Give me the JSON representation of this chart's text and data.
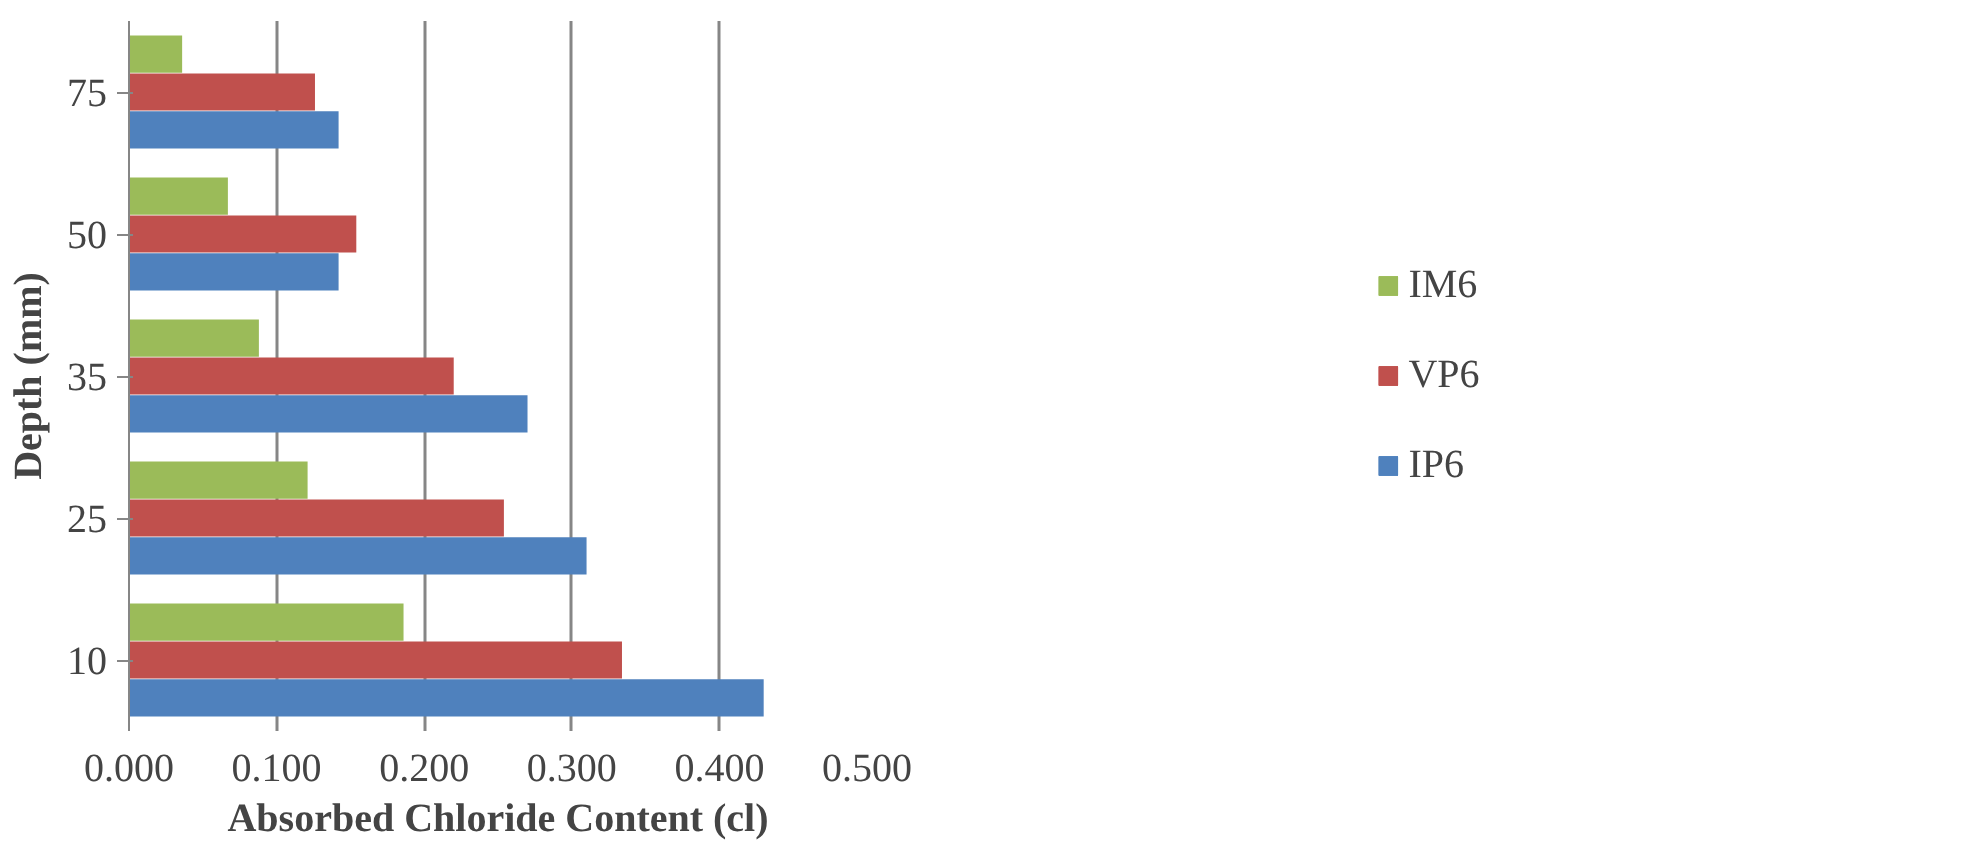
{
  "chart_data": {
    "type": "bar",
    "orientation": "horizontal",
    "xlabel": "Absorbed Chloride Content (cl)",
    "ylabel": "Depth (mm)",
    "categories": [
      "75",
      "50",
      "35",
      "25",
      "10"
    ],
    "series": [
      {
        "name": "IM6",
        "color": "#9bbb59",
        "values": [
          0.036,
          0.067,
          0.088,
          0.121,
          0.186
        ]
      },
      {
        "name": "VP6",
        "color": "#c0504d",
        "values": [
          0.126,
          0.154,
          0.22,
          0.254,
          0.334
        ]
      },
      {
        "name": "IP6",
        "color": "#4f81bd",
        "values": [
          0.142,
          0.142,
          0.27,
          0.31,
          0.43
        ]
      }
    ],
    "xlim": [
      0,
      0.5
    ],
    "xticks": [
      {
        "value": 0,
        "label": "0.000"
      },
      {
        "value": 0.1,
        "label": "0.100"
      },
      {
        "value": 0.2,
        "label": "0.200"
      },
      {
        "value": 0.3,
        "label": "0.300"
      },
      {
        "value": 0.4,
        "label": "0.400"
      },
      {
        "value": 0.5,
        "label": "0.500"
      }
    ],
    "grid": "x",
    "legend": "right"
  }
}
